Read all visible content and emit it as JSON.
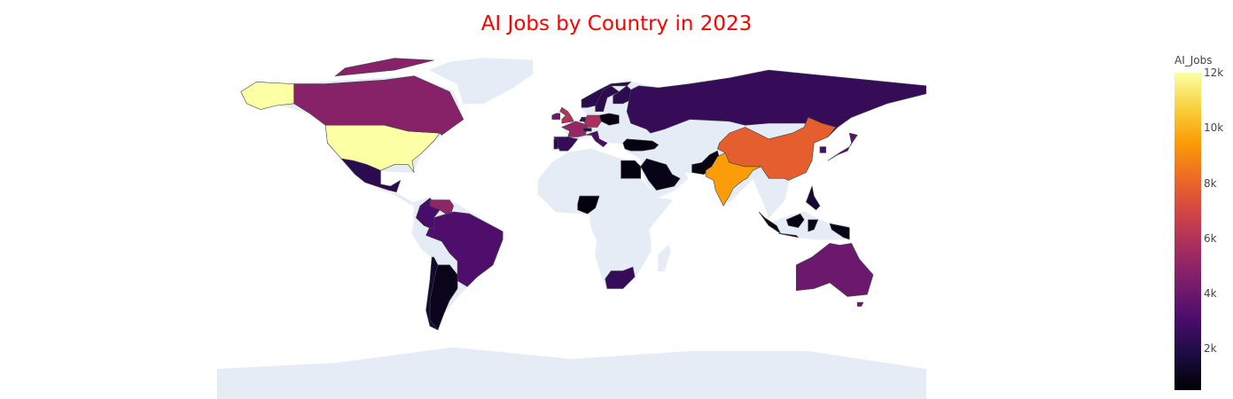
{
  "chart_data": {
    "type": "choropleth",
    "title": "AI Jobs by Country in 2023",
    "colorbar": {
      "title": "AI_Jobs",
      "ticks": [
        {
          "value": 2000,
          "label": "2k"
        },
        {
          "value": 4000,
          "label": "4k"
        },
        {
          "value": 6000,
          "label": "6k"
        },
        {
          "value": 8000,
          "label": "8k"
        },
        {
          "value": 10000,
          "label": "10k"
        },
        {
          "value": 12000,
          "label": "12k"
        }
      ],
      "range": [
        500,
        12000
      ],
      "colorscale": "inferno",
      "stops": [
        "#000004",
        "#1b0c41",
        "#4a0c6b",
        "#781c6d",
        "#a52c60",
        "#cf4446",
        "#ed6925",
        "#fb9b06",
        "#f7d13d",
        "#fcffa4"
      ]
    },
    "land_color": "#e5ecf6",
    "countries": [
      {
        "code": "USA",
        "value": 12000
      },
      {
        "code": "CAN",
        "value": 4800
      },
      {
        "code": "MEX",
        "value": 2200
      },
      {
        "code": "BRA",
        "value": 3200
      },
      {
        "code": "ARG",
        "value": 1000
      },
      {
        "code": "CHL",
        "value": 1500
      },
      {
        "code": "COL",
        "value": 3000
      },
      {
        "code": "VEN",
        "value": 5000
      },
      {
        "code": "GBR",
        "value": 6000
      },
      {
        "code": "IRL",
        "value": 4000
      },
      {
        "code": "FRA",
        "value": 5200
      },
      {
        "code": "DEU",
        "value": 5800
      },
      {
        "code": "ESP",
        "value": 2500
      },
      {
        "code": "PRT",
        "value": 2200
      },
      {
        "code": "ITA",
        "value": 3000
      },
      {
        "code": "NLD",
        "value": 2600
      },
      {
        "code": "CHE",
        "value": 2000
      },
      {
        "code": "POL",
        "value": 800
      },
      {
        "code": "SWE",
        "value": 2200
      },
      {
        "code": "NOR",
        "value": 2200
      },
      {
        "code": "FIN",
        "value": 2200
      },
      {
        "code": "RUS",
        "value": 2500
      },
      {
        "code": "TUR",
        "value": 800
      },
      {
        "code": "EGY",
        "value": 700
      },
      {
        "code": "SAU",
        "value": 900
      },
      {
        "code": "PAK",
        "value": 800
      },
      {
        "code": "IND",
        "value": 9500
      },
      {
        "code": "CHN",
        "value": 7800
      },
      {
        "code": "JPN",
        "value": 3500
      },
      {
        "code": "KOR",
        "value": 3000
      },
      {
        "code": "NGA",
        "value": 700
      },
      {
        "code": "ZAF",
        "value": 2500
      },
      {
        "code": "AUS",
        "value": 4000
      },
      {
        "code": "IDN",
        "value": 800
      },
      {
        "code": "PHL",
        "value": 1500
      }
    ]
  }
}
